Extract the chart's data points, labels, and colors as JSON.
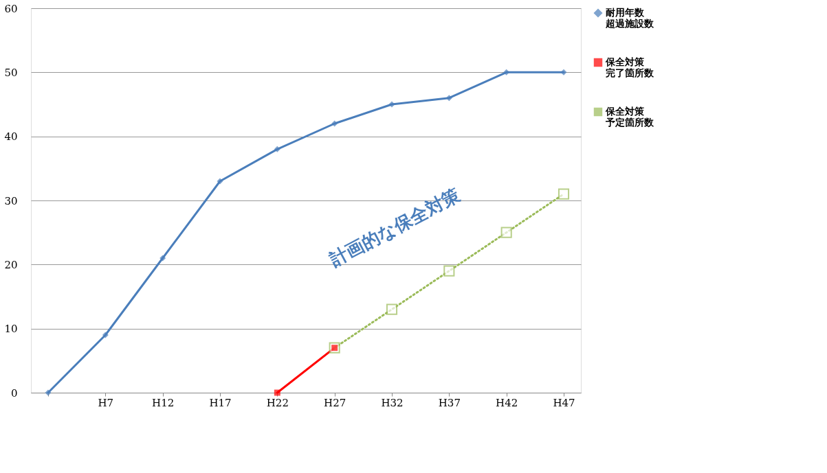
{
  "chart_data": {
    "type": "line",
    "categories": [
      null,
      "H7",
      "H12",
      "H17",
      "H22",
      "H27",
      "H32",
      "H37",
      "H42",
      "H47"
    ],
    "series": [
      {
        "name": "耐用年数超過施設数",
        "color": "#4a7ebb",
        "marker": "diamond",
        "line_style": "solid",
        "values": [
          0,
          9,
          21,
          33,
          38,
          42,
          45,
          46,
          50,
          50
        ]
      },
      {
        "name": "保全対策完了箇所数",
        "color": "#ff0000",
        "marker": "square",
        "line_style": "solid",
        "values": [
          null,
          null,
          null,
          null,
          0,
          7,
          null,
          null,
          null,
          null
        ]
      },
      {
        "name": "保全対策予定箇所数",
        "color": "#9bbb59",
        "marker": "square",
        "line_style": "dotted",
        "values": [
          null,
          null,
          null,
          null,
          null,
          7,
          13,
          19,
          25,
          31
        ]
      }
    ],
    "ylim": [
      0,
      60
    ],
    "yticks": [
      0,
      10,
      20,
      30,
      40,
      50,
      60
    ],
    "grid": "y",
    "legend": "right",
    "annotations": [
      "計画的な保全対策"
    ]
  }
}
